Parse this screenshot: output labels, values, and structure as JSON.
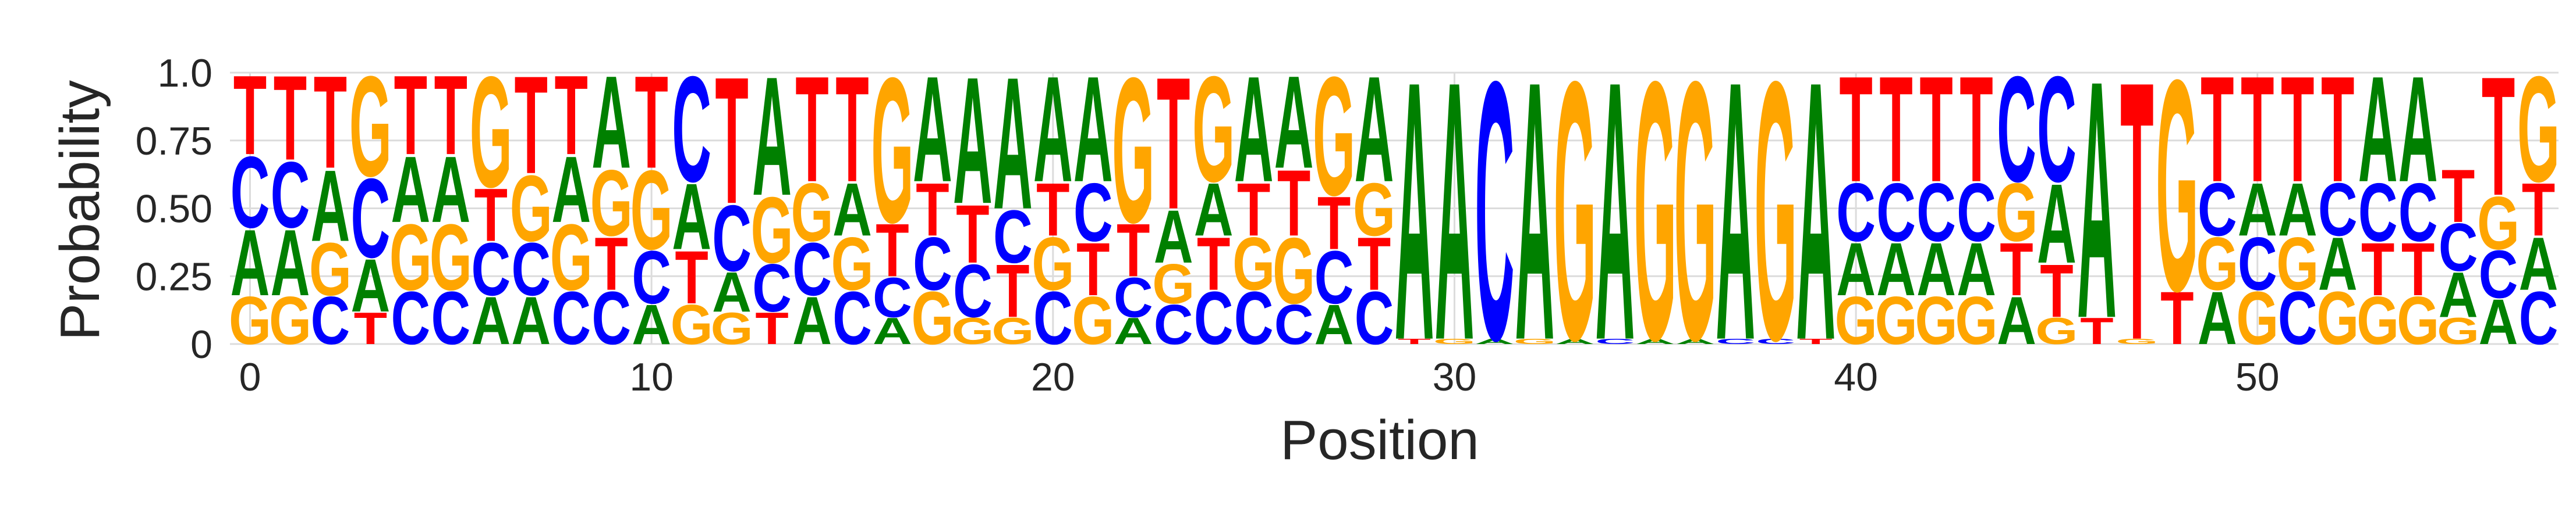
{
  "chart_data": {
    "type": "sequence-logo",
    "xlabel": "Position",
    "ylabel": "Probability",
    "ylim": [
      0,
      1.0
    ],
    "grid": true,
    "x_ticks": [
      "0",
      "10",
      "20",
      "30",
      "40",
      "50"
    ],
    "x_tick_values": [
      0,
      10,
      20,
      30,
      40,
      50
    ],
    "y_ticks": [
      "0",
      "0.25",
      "0.50",
      "0.75",
      "1.0"
    ],
    "y_tick_values": [
      0,
      0.25,
      0.5,
      0.75,
      1.0
    ],
    "colors": {
      "A": "#008000",
      "C": "#0000ff",
      "G": "#ffa500",
      "T": "#ff0000"
    },
    "positions": [
      {
        "x": 0,
        "probs": {
          "G": 0.18,
          "A": 0.25,
          "C": 0.27,
          "T": 0.3
        }
      },
      {
        "x": 1,
        "probs": {
          "G": 0.18,
          "A": 0.25,
          "C": 0.25,
          "T": 0.32
        }
      },
      {
        "x": 2,
        "probs": {
          "C": 0.18,
          "G": 0.2,
          "A": 0.27,
          "T": 0.35
        }
      },
      {
        "x": 3,
        "probs": {
          "A": 0.2,
          "C": 0.3,
          "T": 0.12,
          "G": 0.38
        }
      },
      {
        "x": 4,
        "probs": {
          "C": 0.2,
          "G": 0.25,
          "A": 0.25,
          "T": 0.3
        }
      },
      {
        "x": 5,
        "probs": {
          "C": 0.2,
          "G": 0.25,
          "A": 0.25,
          "T": 0.3
        }
      },
      {
        "x": 6,
        "probs": {
          "C": 0.2,
          "T": 0.2,
          "A": 0.18,
          "G": 0.42
        }
      },
      {
        "x": 7,
        "probs": {
          "C": 0.2,
          "A": 0.18,
          "G": 0.25,
          "T": 0.37
        }
      },
      {
        "x": 8,
        "probs": {
          "C": 0.2,
          "G": 0.25,
          "A": 0.25,
          "T": 0.3
        }
      },
      {
        "x": 9,
        "probs": {
          "C": 0.2,
          "G": 0.25,
          "T": 0.2,
          "A": 0.35
        }
      },
      {
        "x": 10,
        "probs": {
          "C": 0.2,
          "A": 0.15,
          "G": 0.3,
          "T": 0.35
        }
      },
      {
        "x": 11,
        "probs": {
          "G": 0.15,
          "T": 0.2,
          "A": 0.25,
          "C": 0.4
        }
      },
      {
        "x": 12,
        "probs": {
          "G": 0.12,
          "C": 0.25,
          "A": 0.15,
          "T": 0.48
        }
      },
      {
        "x": 13,
        "probs": {
          "C": 0.18,
          "T": 0.12,
          "G": 0.25,
          "A": 0.45
        }
      },
      {
        "x": 14,
        "probs": {
          "C": 0.2,
          "G": 0.22,
          "A": 0.18,
          "T": 0.4
        }
      },
      {
        "x": 15,
        "probs": {
          "C": 0.2,
          "G": 0.2,
          "A": 0.2,
          "T": 0.4
        }
      },
      {
        "x": 16,
        "probs": {
          "C": 0.15,
          "T": 0.2,
          "A": 0.1,
          "G": 0.55
        }
      },
      {
        "x": 17,
        "probs": {
          "G": 0.2,
          "C": 0.2,
          "T": 0.2,
          "A": 0.4
        }
      },
      {
        "x": 18,
        "probs": {
          "C": 0.2,
          "T": 0.22,
          "G": 0.1,
          "A": 0.48
        }
      },
      {
        "x": 19,
        "probs": {
          "T": 0.2,
          "C": 0.2,
          "G": 0.1,
          "A": 0.5
        }
      },
      {
        "x": 20,
        "probs": {
          "C": 0.2,
          "G": 0.2,
          "T": 0.2,
          "A": 0.4
        }
      },
      {
        "x": 21,
        "probs": {
          "G": 0.18,
          "C": 0.22,
          "T": 0.2,
          "A": 0.4
        }
      },
      {
        "x": 22,
        "probs": {
          "C": 0.15,
          "A": 0.1,
          "T": 0.2,
          "G": 0.55
        }
      },
      {
        "x": 23,
        "probs": {
          "C": 0.15,
          "G": 0.15,
          "A": 0.2,
          "T": 0.5
        }
      },
      {
        "x": 24,
        "probs": {
          "C": 0.2,
          "T": 0.2,
          "A": 0.2,
          "G": 0.4
        }
      },
      {
        "x": 25,
        "probs": {
          "C": 0.2,
          "G": 0.2,
          "T": 0.2,
          "A": 0.4
        }
      },
      {
        "x": 26,
        "probs": {
          "C": 0.15,
          "G": 0.25,
          "T": 0.25,
          "A": 0.35
        }
      },
      {
        "x": 27,
        "probs": {
          "C": 0.2,
          "T": 0.2,
          "A": 0.15,
          "G": 0.45
        }
      },
      {
        "x": 28,
        "probs": {
          "C": 0.2,
          "T": 0.2,
          "G": 0.2,
          "A": 0.4
        }
      },
      {
        "x": 29,
        "probs": {
          "A": 0.98,
          "T": 0.02
        }
      },
      {
        "x": 30,
        "probs": {
          "A": 0.98,
          "G": 0.02
        }
      },
      {
        "x": 31,
        "probs": {
          "C": 0.98,
          "A": 0.02
        }
      },
      {
        "x": 32,
        "probs": {
          "A": 0.98,
          "G": 0.02
        }
      },
      {
        "x": 33,
        "probs": {
          "G": 0.98,
          "A": 0.02
        }
      },
      {
        "x": 34,
        "probs": {
          "A": 0.98,
          "C": 0.02
        }
      },
      {
        "x": 35,
        "probs": {
          "G": 0.98,
          "A": 0.02
        }
      },
      {
        "x": 36,
        "probs": {
          "G": 0.98,
          "A": 0.02
        }
      },
      {
        "x": 37,
        "probs": {
          "A": 0.98,
          "C": 0.02
        }
      },
      {
        "x": 38,
        "probs": {
          "G": 0.98,
          "C": 0.02
        }
      },
      {
        "x": 39,
        "probs": {
          "A": 0.98,
          "T": 0.02
        }
      },
      {
        "x": 40,
        "probs": {
          "G": 0.18,
          "A": 0.2,
          "C": 0.22,
          "T": 0.4
        }
      },
      {
        "x": 41,
        "probs": {
          "G": 0.18,
          "A": 0.2,
          "C": 0.22,
          "T": 0.4
        }
      },
      {
        "x": 42,
        "probs": {
          "G": 0.18,
          "C": 0.22,
          "A": 0.2,
          "T": 0.4
        }
      },
      {
        "x": 43,
        "probs": {
          "G": 0.18,
          "C": 0.22,
          "A": 0.2,
          "T": 0.4
        }
      },
      {
        "x": 44,
        "probs": {
          "A": 0.18,
          "G": 0.22,
          "T": 0.2,
          "C": 0.4
        }
      },
      {
        "x": 45,
        "probs": {
          "G": 0.1,
          "T": 0.2,
          "A": 0.3,
          "C": 0.4
        }
      },
      {
        "x": 46,
        "probs": {
          "A": 0.9,
          "T": 0.1
        }
      },
      {
        "x": 47,
        "probs": {
          "T": 0.98,
          "G": 0.02
        }
      },
      {
        "x": 48,
        "probs": {
          "G": 0.8,
          "T": 0.2
        }
      },
      {
        "x": 49,
        "probs": {
          "A": 0.2,
          "G": 0.2,
          "C": 0.2,
          "T": 0.4
        }
      },
      {
        "x": 50,
        "probs": {
          "G": 0.2,
          "C": 0.2,
          "A": 0.2,
          "T": 0.4
        }
      },
      {
        "x": 51,
        "probs": {
          "C": 0.2,
          "G": 0.2,
          "A": 0.2,
          "T": 0.4
        }
      },
      {
        "x": 52,
        "probs": {
          "G": 0.2,
          "A": 0.2,
          "C": 0.2,
          "T": 0.4
        }
      },
      {
        "x": 53,
        "probs": {
          "G": 0.18,
          "C": 0.22,
          "T": 0.2,
          "A": 0.4
        }
      },
      {
        "x": 54,
        "probs": {
          "G": 0.18,
          "C": 0.22,
          "T": 0.2,
          "A": 0.4
        }
      },
      {
        "x": 55,
        "probs": {
          "C": 0.18,
          "A": 0.17,
          "G": 0.1,
          "T": 0.2,
          "A2": 0.0
        }
      },
      {
        "x": 56,
        "probs": {
          "C": 0.18,
          "A": 0.17,
          "G": 0.2,
          "T": 0.45
        }
      },
      {
        "x": 57,
        "probs": {
          "C": 0.2,
          "A": 0.2,
          "T": 0.2,
          "G": 0.4
        }
      }
    ]
  }
}
